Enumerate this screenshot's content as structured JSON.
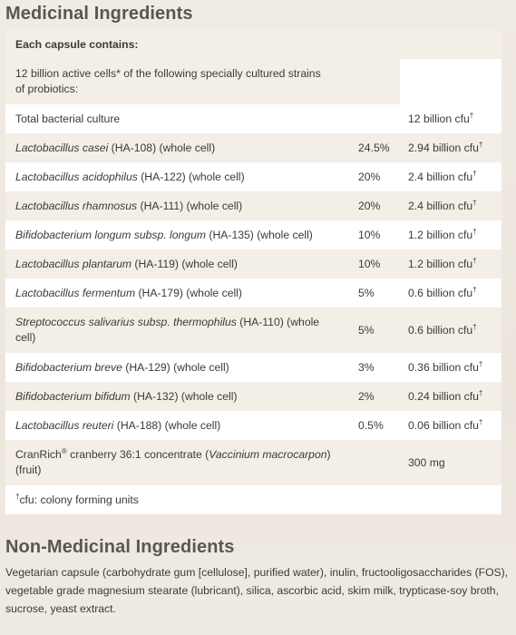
{
  "medicinal": {
    "heading": "Medicinal Ingredients",
    "header_row": "Each capsule contains:",
    "intro_row": "12 billion active cells* of the following specially cultured strains of probiotics:",
    "total": {
      "label": "Total bacterial culture",
      "amount": "12 billion cfu"
    },
    "strains": [
      {
        "species": "Lactobacillus casei",
        "rest": " (HA-108) (whole cell)",
        "percent": "24.5%",
        "amount": "2.94 billion cfu"
      },
      {
        "species": "Lactobacillus acidophilus",
        "rest": " (HA-122) (whole cell)",
        "percent": "20%",
        "amount": "2.4 billion cfu"
      },
      {
        "species": "Lactobacillus rhamnosus",
        "rest": " (HA-111) (whole cell)",
        "percent": "20%",
        "amount": "2.4 billion cfu"
      },
      {
        "species": "Bifidobacterium longum subsp. longum",
        "rest": " (HA-135) (whole cell)",
        "percent": "10%",
        "amount": "1.2 billion cfu"
      },
      {
        "species": "Lactobacillus plantarum",
        "rest": " (HA-119) (whole cell)",
        "percent": "10%",
        "amount": "1.2 billion cfu"
      },
      {
        "species": "Lactobacillus fermentum",
        "rest": " (HA-179) (whole cell)",
        "percent": "5%",
        "amount": "0.6 billion cfu"
      },
      {
        "species": "Streptococcus salivarius subsp. thermophilus",
        "rest": " (HA-110) (whole cell)",
        "percent": "5%",
        "amount": "0.6 billion cfu"
      },
      {
        "species": "Bifidobacterium breve",
        "rest": " (HA-129) (whole cell)",
        "percent": "3%",
        "amount": "0.36 billion cfu"
      },
      {
        "species": "Bifidobacterium bifidum",
        "rest": " (HA-132) (whole cell)",
        "percent": "2%",
        "amount": "0.24 billion cfu"
      },
      {
        "species": "Lactobacillus reuteri",
        "rest": " (HA-188) (whole cell)",
        "percent": "0.5%",
        "amount": "0.06 billion cfu"
      }
    ],
    "cranberry": {
      "brand": "CranRich",
      "brand_mark": "®",
      "text": " cranberry 36:1 concentrate (",
      "latin": "Vaccinium macrocarpon",
      "suffix": ") (fruit)",
      "amount": "300 mg"
    },
    "dagger": "†",
    "footnote": "cfu: colony forming units"
  },
  "non_medicinal": {
    "heading": "Non-Medicinal Ingredients",
    "text": "Vegetarian capsule (carbohydrate gum [cellulose], purified water), inulin, fructooligosaccharides (FOS), vegetable grade magnesium stearate (lubricant), silica, ascorbic acid, skim milk, trypticase-soy broth, sucrose, yeast extract."
  }
}
